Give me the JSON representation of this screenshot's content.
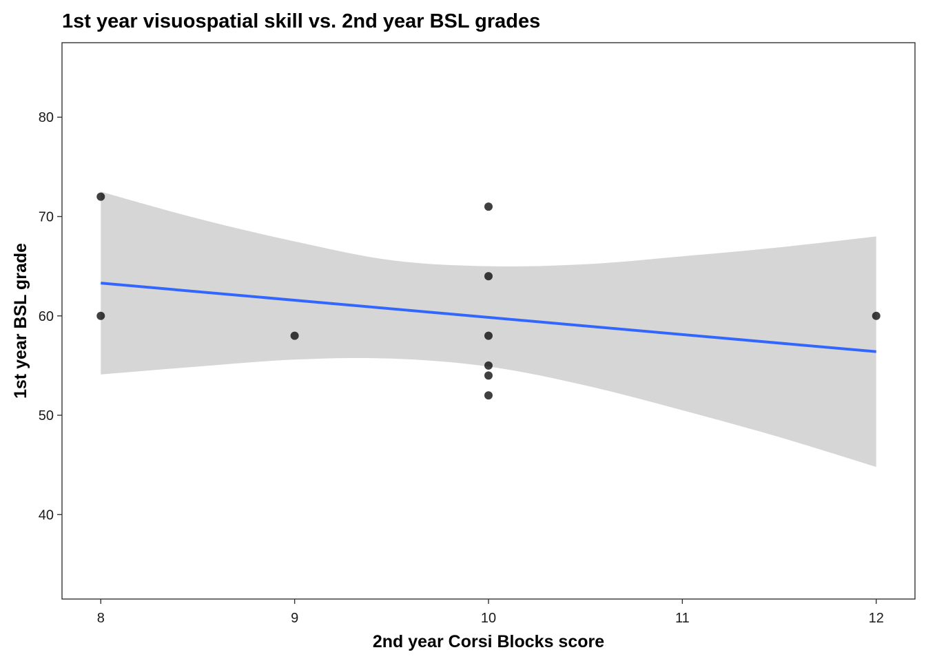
{
  "chart_data": {
    "type": "scatter",
    "title": "1st year visuospatial skill vs. 2nd year BSL grades",
    "xlabel": "2nd year Corsi Blocks score",
    "ylabel": "1st year BSL grade",
    "xlim": [
      7.8,
      12.2
    ],
    "ylim": [
      31.5,
      87.5
    ],
    "x_ticks": [
      8,
      9,
      10,
      11,
      12
    ],
    "y_ticks": [
      40,
      50,
      60,
      70,
      80
    ],
    "grid": false,
    "points": [
      {
        "x": 8,
        "y": 72
      },
      {
        "x": 8,
        "y": 60
      },
      {
        "x": 9,
        "y": 58
      },
      {
        "x": 10,
        "y": 71
      },
      {
        "x": 10,
        "y": 64
      },
      {
        "x": 10,
        "y": 58
      },
      {
        "x": 10,
        "y": 55
      },
      {
        "x": 10,
        "y": 54
      },
      {
        "x": 10,
        "y": 52
      },
      {
        "x": 12,
        "y": 60
      }
    ],
    "fit_line": {
      "x": [
        8,
        12
      ],
      "y": [
        63.3,
        56.4
      ]
    },
    "confidence_band": {
      "x": [
        8,
        8.5,
        9,
        9.5,
        10,
        10.5,
        11,
        11.5,
        12
      ],
      "upper": [
        72.5,
        69.8,
        67.5,
        65.6,
        65.0,
        65.2,
        66.0,
        66.9,
        68.0
      ],
      "lower": [
        54.1,
        54.9,
        55.6,
        55.7,
        54.9,
        53.0,
        50.5,
        47.8,
        44.8
      ]
    },
    "colors": {
      "line": "#3366ff",
      "band": "#d6d6d6",
      "points": "#000000"
    }
  }
}
